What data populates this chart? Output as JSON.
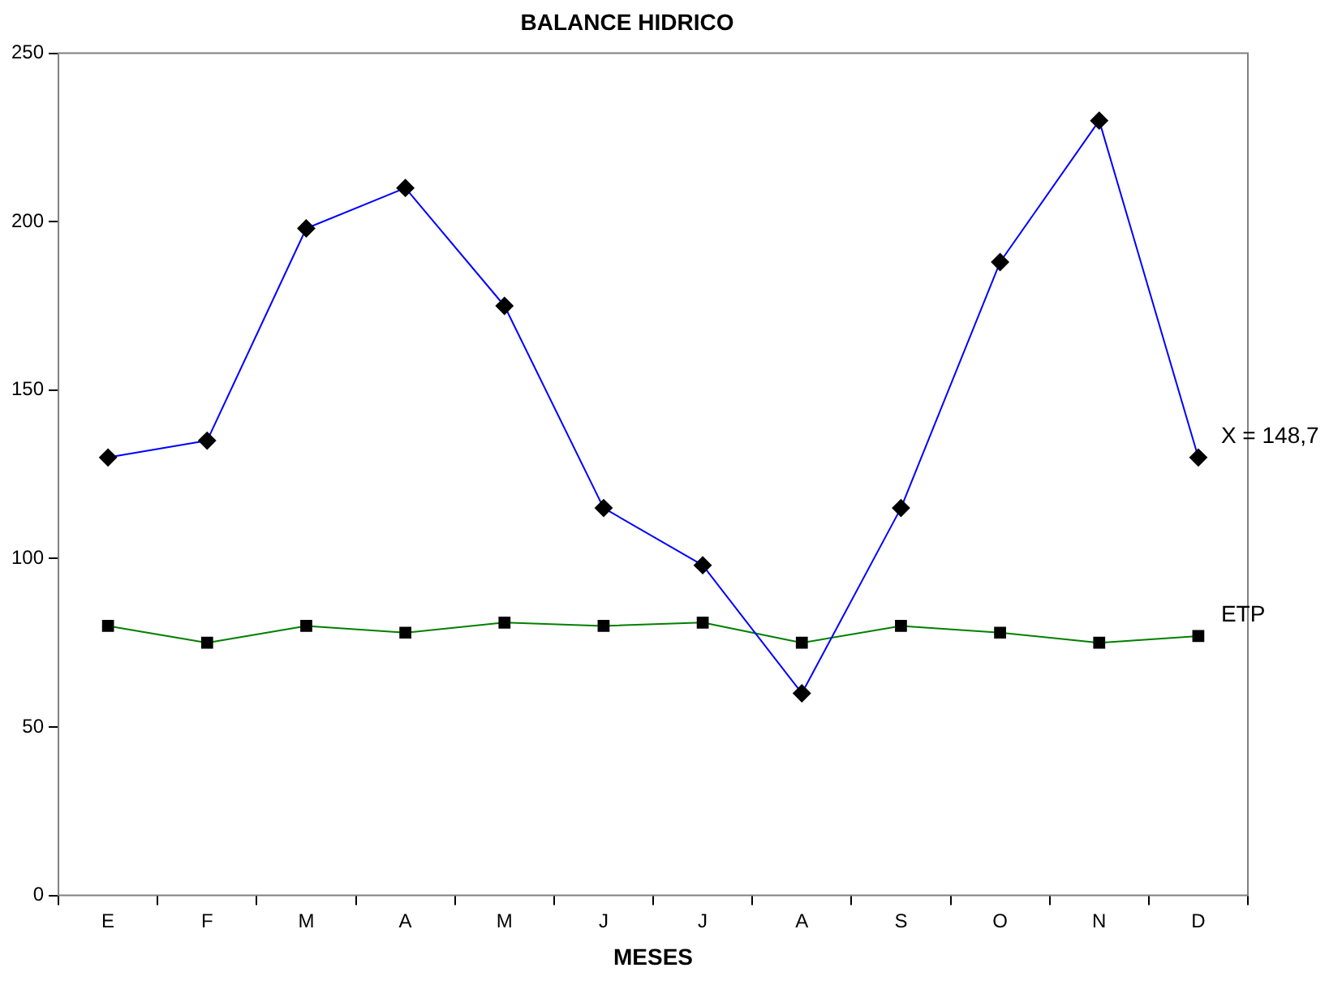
{
  "chart_data": {
    "type": "line",
    "title": "BALANCE HIDRICO",
    "xlabel": "MESES",
    "categories": [
      "E",
      "F",
      "M",
      "A",
      "M",
      "J",
      "J",
      "A",
      "S",
      "O",
      "N",
      "D"
    ],
    "series": [
      {
        "name": "X = 148,7",
        "color": "#0000ff",
        "marker": "diamond",
        "values": [
          130,
          135,
          198,
          210,
          175,
          115,
          98,
          60,
          115,
          188,
          230,
          130
        ]
      },
      {
        "name": "ETP",
        "color": "#008000",
        "marker": "square",
        "values": [
          80,
          75,
          80,
          78,
          81,
          80,
          81,
          75,
          80,
          78,
          75,
          77
        ]
      }
    ],
    "ylim": [
      0,
      250
    ],
    "yticks": [
      0,
      50,
      100,
      150,
      200,
      250
    ],
    "grid": false,
    "legend": false,
    "line_style": "solid"
  }
}
